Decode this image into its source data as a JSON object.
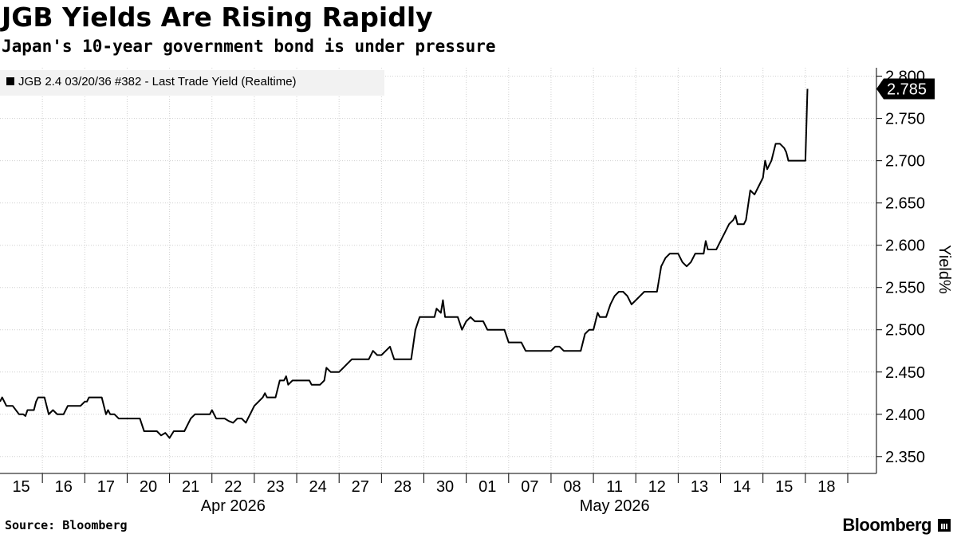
{
  "header": {
    "title": "JGB Yields Are Rising Rapidly",
    "subtitle": "Japan's 10-year government bond is under pressure"
  },
  "footer": {
    "source": "Source: Bloomberg",
    "brand": "Bloomberg",
    "brand_icon": "bloomberg-terminal-icon"
  },
  "colors": {
    "line": "#000000",
    "grid": "#d0d0d0",
    "legend_bg": "#f2f2f2",
    "last_label_bg": "#000000",
    "last_label_text": "#ffffff"
  },
  "chart_data": {
    "type": "line",
    "legend": [
      "JGB 2.4 03/20/36 #382 - Last Trade Yield (Realtime)"
    ],
    "legend_position": "top-left",
    "ylabel": "Yield%",
    "yaxis_side": "right",
    "ylim": [
      2.33,
      2.81
    ],
    "yticks": [
      "2.350",
      "2.400",
      "2.450",
      "2.500",
      "2.550",
      "2.600",
      "2.650",
      "2.700",
      "2.750",
      "2.800"
    ],
    "grid": true,
    "last_value_label": "2.785",
    "xticks": [
      "15",
      "16",
      "17",
      "20",
      "21",
      "22",
      "23",
      "24",
      "27",
      "28",
      "30",
      "01",
      "07",
      "08",
      "11",
      "12",
      "13",
      "14",
      "15",
      "18"
    ],
    "month_labels": [
      "Apr 2026",
      "May 2026"
    ],
    "series": [
      {
        "x": [
          0,
          0.05,
          0.15,
          0.3,
          0.45,
          0.55,
          0.6,
          0.65,
          0.7,
          0.75,
          0.8,
          0.85,
          0.9,
          0.95,
          1.0,
          1.05,
          1.15,
          1.25,
          1.35,
          1.4,
          1.45,
          1.5,
          1.6,
          1.7,
          1.8,
          1.9,
          2.0,
          2.05,
          2.1,
          2.2,
          2.3,
          2.4,
          2.5,
          2.55,
          2.6,
          2.7,
          2.8,
          2.9,
          2.95,
          3.0,
          3.1,
          3.2,
          3.3,
          3.4,
          3.5,
          3.6,
          3.7,
          3.8,
          3.9,
          4.0,
          4.1,
          4.15,
          4.2,
          4.25,
          4.35,
          4.5,
          4.6,
          4.7,
          4.8,
          4.85,
          4.9,
          4.95,
          5.0,
          5.05,
          5.1,
          5.15,
          5.2,
          5.25,
          5.3,
          5.4,
          5.5,
          5.6,
          5.7,
          5.8,
          5.85,
          5.9,
          6.0,
          6.1,
          6.2,
          6.25,
          6.3,
          6.4,
          6.5,
          6.6,
          6.7,
          6.75,
          6.8,
          6.9,
          7.0,
          7.1,
          7.2,
          7.25,
          7.3,
          7.35,
          7.45,
          7.5,
          7.55,
          7.65,
          7.7,
          7.8,
          7.9,
          8.0,
          8.1,
          8.2,
          8.3,
          8.4,
          8.45,
          8.5,
          8.6,
          8.7,
          8.8,
          8.9,
          9.0,
          9.1,
          9.2,
          9.3,
          9.35,
          9.4,
          9.5,
          9.6,
          9.7,
          9.8,
          9.9,
          10.0,
          10.1,
          10.2,
          10.25,
          10.3,
          10.4,
          10.45,
          10.5,
          10.6,
          10.7,
          10.8,
          10.9,
          11.0,
          11.1,
          11.2,
          11.3,
          11.4,
          11.5,
          11.6,
          11.7,
          11.8,
          11.9,
          12.0,
          12.1,
          12.2,
          12.3,
          12.4,
          12.5,
          12.6,
          12.7,
          12.8,
          12.9,
          13.0,
          13.1,
          13.2,
          13.3,
          13.4,
          13.5,
          13.6,
          13.7,
          13.8,
          13.9,
          14.0,
          14.1,
          14.15,
          14.2,
          14.3,
          14.4,
          14.5,
          14.6,
          14.7,
          14.8,
          14.9,
          15.0,
          15.1,
          15.2,
          15.3,
          15.4,
          15.5,
          15.6,
          15.7,
          15.8,
          15.9,
          16.0,
          16.1,
          16.2,
          16.3,
          16.4,
          16.5,
          16.6,
          16.65,
          16.7,
          16.75,
          16.8,
          16.85,
          16.9,
          17.0,
          17.1,
          17.2,
          17.3,
          17.35,
          17.4,
          17.5,
          17.55,
          17.6,
          17.7,
          17.8,
          17.9,
          18.0,
          18.05,
          18.1,
          18.2,
          18.3,
          18.4,
          18.5,
          18.55,
          18.6,
          18.7,
          18.8,
          18.9,
          19.0,
          19.05
        ],
        "y": [
          2.415,
          2.42,
          2.41,
          2.41,
          2.4,
          2.4,
          2.398,
          2.405,
          2.405,
          2.405,
          2.405,
          2.415,
          2.42,
          2.42,
          2.42,
          2.42,
          2.4,
          2.405,
          2.4,
          2.4,
          2.4,
          2.4,
          2.41,
          2.41,
          2.41,
          2.41,
          2.415,
          2.415,
          2.42,
          2.42,
          2.42,
          2.42,
          2.4,
          2.405,
          2.4,
          2.4,
          2.395,
          2.395,
          2.395,
          2.395,
          2.395,
          2.395,
          2.395,
          2.38,
          2.38,
          2.38,
          2.38,
          2.375,
          2.378,
          2.372,
          2.38,
          2.38,
          2.38,
          2.38,
          2.38,
          2.395,
          2.4,
          2.4,
          2.4,
          2.4,
          2.4,
          2.4,
          2.405,
          2.4,
          2.395,
          2.395,
          2.395,
          2.395,
          2.395,
          2.392,
          2.39,
          2.395,
          2.395,
          2.39,
          2.395,
          2.4,
          2.41,
          2.415,
          2.42,
          2.425,
          2.42,
          2.42,
          2.42,
          2.44,
          2.44,
          2.445,
          2.435,
          2.44,
          2.44,
          2.44,
          2.44,
          2.44,
          2.44,
          2.435,
          2.435,
          2.435,
          2.435,
          2.44,
          2.455,
          2.45,
          2.45,
          2.45,
          2.455,
          2.46,
          2.465,
          2.465,
          2.465,
          2.465,
          2.465,
          2.465,
          2.475,
          2.47,
          2.47,
          2.475,
          2.48,
          2.465,
          2.465,
          2.465,
          2.465,
          2.465,
          2.465,
          2.5,
          2.515,
          2.515,
          2.515,
          2.515,
          2.515,
          2.525,
          2.52,
          2.535,
          2.515,
          2.515,
          2.515,
          2.515,
          2.5,
          2.51,
          2.515,
          2.51,
          2.51,
          2.51,
          2.5,
          2.5,
          2.5,
          2.5,
          2.5,
          2.485,
          2.485,
          2.485,
          2.485,
          2.475,
          2.475,
          2.475,
          2.475,
          2.475,
          2.475,
          2.475,
          2.48,
          2.48,
          2.475,
          2.475,
          2.475,
          2.475,
          2.475,
          2.495,
          2.5,
          2.5,
          2.52,
          2.515,
          2.515,
          2.515,
          2.53,
          2.54,
          2.545,
          2.545,
          2.54,
          2.53,
          2.535,
          2.54,
          2.545,
          2.545,
          2.545,
          2.545,
          2.575,
          2.585,
          2.59,
          2.59,
          2.59,
          2.58,
          2.575,
          2.58,
          2.59,
          2.59,
          2.59,
          2.605,
          2.595,
          2.595,
          2.595,
          2.595,
          2.595,
          2.605,
          2.615,
          2.625,
          2.63,
          2.635,
          2.625,
          2.625,
          2.625,
          2.63,
          2.665,
          2.66,
          2.67,
          2.68,
          2.7,
          2.69,
          2.7,
          2.72,
          2.72,
          2.715,
          2.71,
          2.7,
          2.7,
          2.7,
          2.7,
          2.7,
          2.785
        ]
      }
    ]
  }
}
